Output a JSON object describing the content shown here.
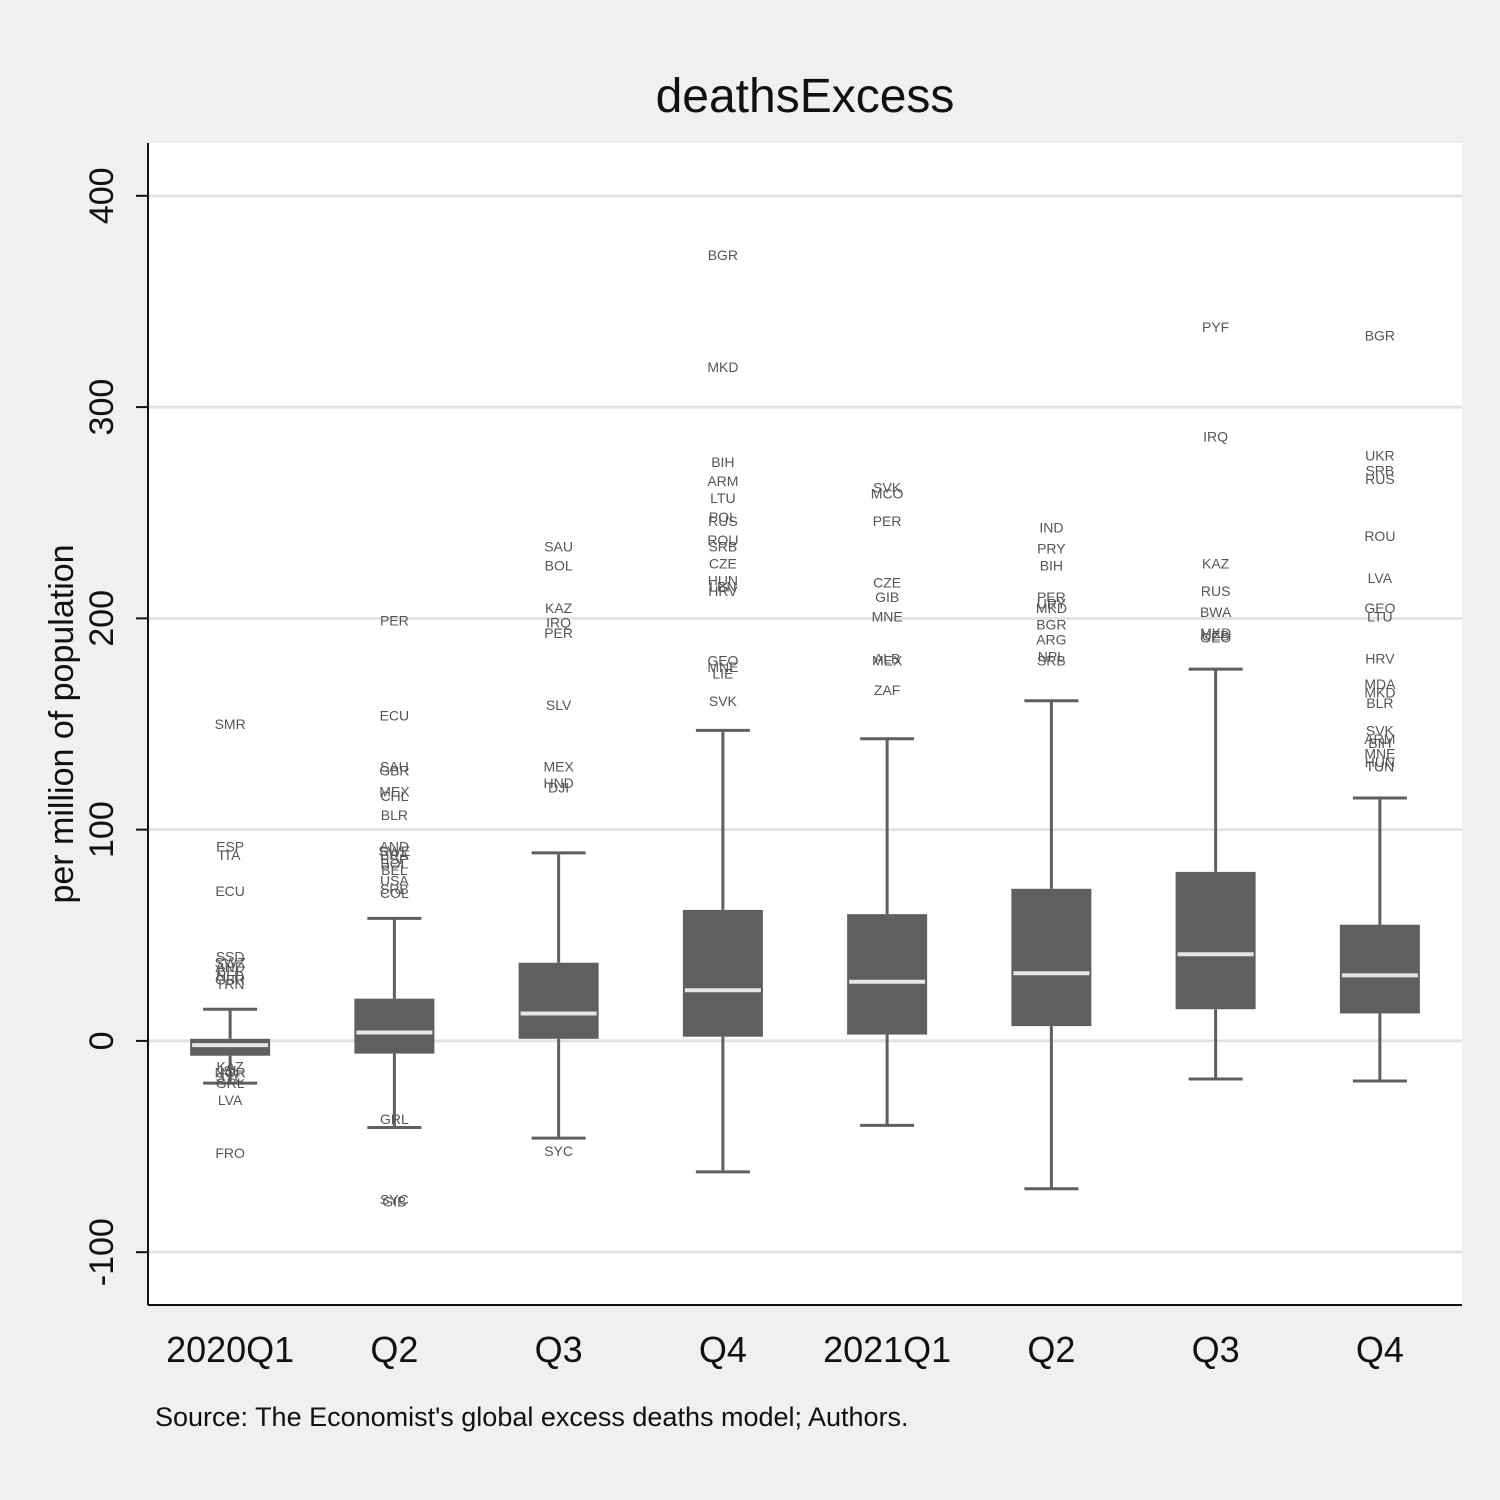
{
  "chart_data": {
    "type": "box",
    "title": "deathsExcess",
    "ylabel": "per million of population",
    "xlabel": "",
    "source": "Source: The Economist's global excess deaths model; Authors.",
    "ylim": [
      -125,
      425
    ],
    "yticks": [
      -100,
      0,
      100,
      200,
      300,
      400
    ],
    "grid": true,
    "box_color": "#5f5f5f",
    "median_color": "#e6e6e6",
    "categories": [
      "2020Q1",
      "Q2",
      "Q3",
      "Q4",
      "2021Q1",
      "Q2",
      "Q3",
      "Q4"
    ],
    "boxes": [
      {
        "q1": -7,
        "median": -2,
        "q3": 1,
        "whisker_low": -20,
        "whisker_high": 15
      },
      {
        "q1": -6,
        "median": 4,
        "q3": 20,
        "whisker_low": -41,
        "whisker_high": 58
      },
      {
        "q1": 1,
        "median": 13,
        "q3": 37,
        "whisker_low": -46,
        "whisker_high": 89
      },
      {
        "q1": 2,
        "median": 24,
        "q3": 62,
        "whisker_low": -62,
        "whisker_high": 147
      },
      {
        "q1": 3,
        "median": 28,
        "q3": 60,
        "whisker_low": -40,
        "whisker_high": 143
      },
      {
        "q1": 7,
        "median": 32,
        "q3": 72,
        "whisker_low": -70,
        "whisker_high": 161
      },
      {
        "q1": 15,
        "median": 41,
        "q3": 80,
        "whisker_low": -18,
        "whisker_high": 176
      },
      {
        "q1": 13,
        "median": 31,
        "q3": 55,
        "whisker_low": -19,
        "whisker_high": 115
      }
    ],
    "outliers": [
      [
        {
          "label": "SMR",
          "y": 150
        },
        {
          "label": "ESP",
          "y": 92
        },
        {
          "label": "ITA",
          "y": 88
        },
        {
          "label": "ECU",
          "y": 71
        },
        {
          "label": "SSD",
          "y": 40
        },
        {
          "label": "SWZ",
          "y": 37
        },
        {
          "label": "AND",
          "y": 35
        },
        {
          "label": "BEL",
          "y": 33
        },
        {
          "label": "NLD",
          "y": 31
        },
        {
          "label": "GBR",
          "y": 29
        },
        {
          "label": "TRN",
          "y": 27
        },
        {
          "label": "KAZ",
          "y": -12
        },
        {
          "label": "ISL",
          "y": -14
        },
        {
          "label": "NOR",
          "y": -15
        },
        {
          "label": "SYC",
          "y": -17
        },
        {
          "label": "GRL",
          "y": -20
        },
        {
          "label": "LVA",
          "y": -28
        },
        {
          "label": "FRO",
          "y": -53
        }
      ],
      [
        {
          "label": "PER",
          "y": 199
        },
        {
          "label": "ECU",
          "y": 154
        },
        {
          "label": "SAU",
          "y": 130
        },
        {
          "label": "GBR",
          "y": 128
        },
        {
          "label": "MEX",
          "y": 118
        },
        {
          "label": "CHL",
          "y": 116
        },
        {
          "label": "BLR",
          "y": 107
        },
        {
          "label": "AND",
          "y": 92
        },
        {
          "label": "SWE",
          "y": 90
        },
        {
          "label": "BRA",
          "y": 88
        },
        {
          "label": "ESP",
          "y": 86
        },
        {
          "label": "BOL",
          "y": 84
        },
        {
          "label": "BEL",
          "y": 81
        },
        {
          "label": "USA",
          "y": 76
        },
        {
          "label": "SRB",
          "y": 72
        },
        {
          "label": "COL",
          "y": 70
        },
        {
          "label": "GRL",
          "y": -37
        },
        {
          "label": "SYC",
          "y": -75
        },
        {
          "label": "GIB",
          "y": -76
        }
      ],
      [
        {
          "label": "SAU",
          "y": 234
        },
        {
          "label": "BOL",
          "y": 225
        },
        {
          "label": "KAZ",
          "y": 205
        },
        {
          "label": "IRQ",
          "y": 198
        },
        {
          "label": "PER",
          "y": 193
        },
        {
          "label": "SLV",
          "y": 159
        },
        {
          "label": "MEX",
          "y": 130
        },
        {
          "label": "HND",
          "y": 122
        },
        {
          "label": "DJI",
          "y": 120
        },
        {
          "label": "SYC",
          "y": -52
        }
      ],
      [
        {
          "label": "BGR",
          "y": 372
        },
        {
          "label": "MKD",
          "y": 319
        },
        {
          "label": "BIH",
          "y": 274
        },
        {
          "label": "ARM",
          "y": 265
        },
        {
          "label": "LTU",
          "y": 257
        },
        {
          "label": "POL",
          "y": 248
        },
        {
          "label": "RUS",
          "y": 246
        },
        {
          "label": "ROU",
          "y": 237
        },
        {
          "label": "SRB",
          "y": 234
        },
        {
          "label": "CZE",
          "y": 226
        },
        {
          "label": "HUN",
          "y": 218
        },
        {
          "label": "LBN",
          "y": 215
        },
        {
          "label": "HRV",
          "y": 213
        },
        {
          "label": "GEO",
          "y": 180
        },
        {
          "label": "MNE",
          "y": 177
        },
        {
          "label": "LIE",
          "y": 174
        },
        {
          "label": "SVK",
          "y": 161
        }
      ],
      [
        {
          "label": "SVK",
          "y": 262
        },
        {
          "label": "MCO",
          "y": 259
        },
        {
          "label": "PER",
          "y": 246
        },
        {
          "label": "CZE",
          "y": 217
        },
        {
          "label": "GIB",
          "y": 210
        },
        {
          "label": "MNE",
          "y": 201
        },
        {
          "label": "ALB",
          "y": 181
        },
        {
          "label": "MEX",
          "y": 180
        },
        {
          "label": "ZAF",
          "y": 166
        }
      ],
      [
        {
          "label": "IND",
          "y": 243
        },
        {
          "label": "PRY",
          "y": 233
        },
        {
          "label": "BIH",
          "y": 225
        },
        {
          "label": "PER",
          "y": 210
        },
        {
          "label": "URY",
          "y": 207
        },
        {
          "label": "MKD",
          "y": 205
        },
        {
          "label": "BGR",
          "y": 197
        },
        {
          "label": "ARG",
          "y": 190
        },
        {
          "label": "NPL",
          "y": 182
        },
        {
          "label": "SRB",
          "y": 180
        }
      ],
      [
        {
          "label": "PYF",
          "y": 338
        },
        {
          "label": "IRQ",
          "y": 286
        },
        {
          "label": "KAZ",
          "y": 226
        },
        {
          "label": "RUS",
          "y": 213
        },
        {
          "label": "BWA",
          "y": 203
        },
        {
          "label": "MKD",
          "y": 193
        },
        {
          "label": "GEO",
          "y": 191
        },
        {
          "label": "UZB",
          "y": 192
        }
      ],
      [
        {
          "label": "BGR",
          "y": 334
        },
        {
          "label": "UKR",
          "y": 277
        },
        {
          "label": "SRB",
          "y": 270
        },
        {
          "label": "RUS",
          "y": 266
        },
        {
          "label": "ROU",
          "y": 239
        },
        {
          "label": "LVA",
          "y": 219
        },
        {
          "label": "GEO",
          "y": 205
        },
        {
          "label": "LTU",
          "y": 201
        },
        {
          "label": "HRV",
          "y": 181
        },
        {
          "label": "MDA",
          "y": 169
        },
        {
          "label": "MKD",
          "y": 165
        },
        {
          "label": "BLR",
          "y": 160
        },
        {
          "label": "SVK",
          "y": 147
        },
        {
          "label": "ARM",
          "y": 143
        },
        {
          "label": "BIH",
          "y": 141
        },
        {
          "label": "MNE",
          "y": 136
        },
        {
          "label": "HUN",
          "y": 132
        },
        {
          "label": "TUN",
          "y": 130
        }
      ]
    ]
  }
}
